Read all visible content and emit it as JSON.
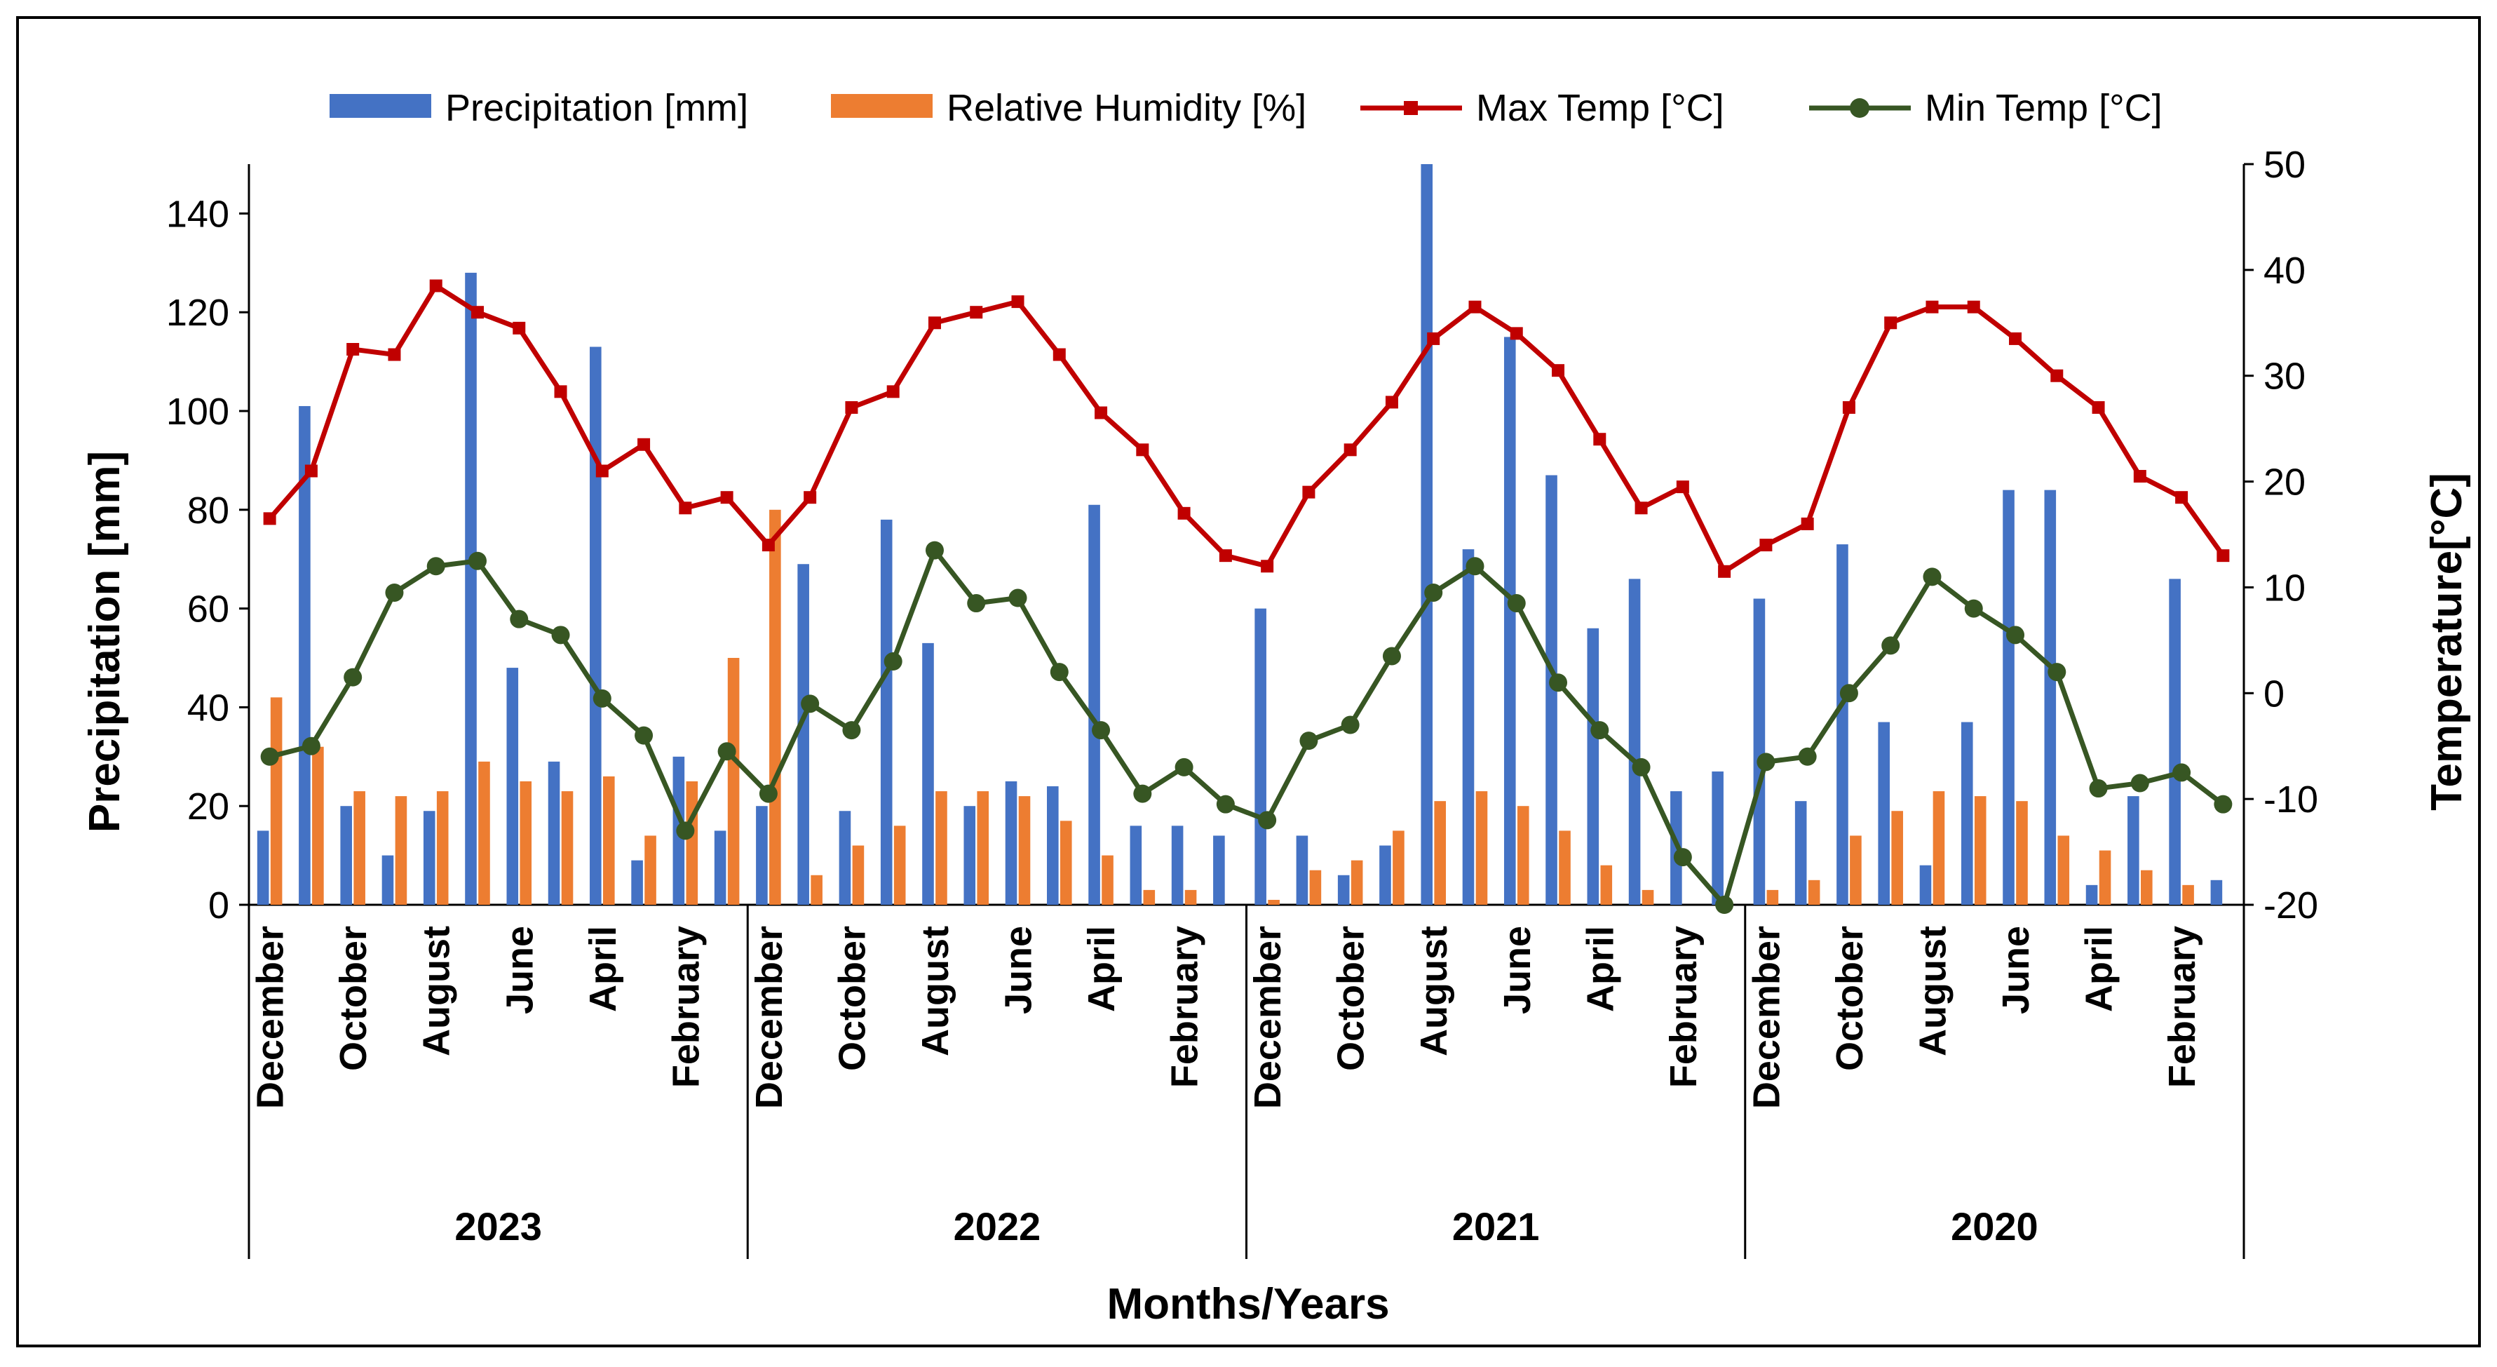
{
  "chart_data": {
    "type": "bar-line-combo",
    "title": "",
    "xlabel": "Months/Years",
    "ylabel_left": "Precipitation [mm]",
    "ylabel_right": "Temperature[°C]",
    "ylim_left": [
      0,
      150
    ],
    "ylim_right": [
      -20,
      50
    ],
    "yticks_left": [
      0,
      20,
      40,
      60,
      80,
      100,
      120,
      140
    ],
    "yticks_right": [
      -20,
      -10,
      0,
      10,
      20,
      30,
      40,
      50
    ],
    "legend_position": "top",
    "years": [
      "2023",
      "2022",
      "2021",
      "2020"
    ],
    "month_tick_labels": [
      "December",
      "October",
      "August",
      "June",
      "April",
      "February"
    ],
    "months_per_year": 12,
    "series": [
      {
        "name": "Precipitation [mm]",
        "type": "bar",
        "axis": "left",
        "color": "#4472C4",
        "values": [
          15,
          101,
          20,
          10,
          19,
          128,
          48,
          29,
          113,
          9,
          30,
          15,
          20,
          69,
          19,
          78,
          53,
          20,
          25,
          24,
          81,
          16,
          16,
          14,
          60,
          14,
          6,
          12,
          150,
          72,
          115,
          87,
          56,
          66,
          23,
          27,
          62,
          21,
          73,
          37,
          8,
          37,
          84,
          84,
          4,
          22,
          66,
          5
        ]
      },
      {
        "name": "Relative Humidity [%]",
        "type": "bar",
        "axis": "left",
        "color": "#ED7D31",
        "values": [
          42,
          32,
          23,
          22,
          23,
          29,
          25,
          23,
          26,
          14,
          25,
          50,
          80,
          6,
          12,
          16,
          23,
          23,
          22,
          17,
          10,
          3,
          3,
          0,
          1,
          7,
          9,
          15,
          21,
          23,
          20,
          15,
          8,
          3,
          0,
          0,
          3,
          5,
          14,
          19,
          23,
          22,
          21,
          14,
          11,
          7,
          4,
          0
        ]
      },
      {
        "name": "Max Temp [°C]",
        "type": "line",
        "axis": "right",
        "color": "#C00000",
        "marker": "square",
        "values": [
          16.5,
          21,
          32.5,
          32,
          38.5,
          36,
          34.5,
          28.5,
          21,
          23.5,
          17.5,
          18.5,
          14,
          18.5,
          27,
          28.5,
          35,
          36,
          37,
          32,
          26.5,
          23,
          17,
          13,
          12,
          19,
          23,
          27.5,
          33.5,
          36.5,
          34,
          30.5,
          24,
          17.5,
          19.5,
          11.5,
          14,
          16,
          27,
          35,
          36.5,
          36.5,
          33.5,
          30,
          27,
          20.5,
          18.5,
          13
        ]
      },
      {
        "name": "Min Temp [°C]",
        "type": "line",
        "axis": "right",
        "color": "#375623",
        "marker": "circle",
        "values": [
          -6,
          -5,
          1.5,
          9.5,
          12,
          12.5,
          7,
          5.5,
          -0.5,
          -4,
          -13,
          -5.5,
          -9.5,
          -1,
          -3.5,
          3,
          13.5,
          8.5,
          9,
          2,
          -3.5,
          -9.5,
          -7,
          -10.5,
          -12,
          -4.5,
          -3,
          3.5,
          9.5,
          12,
          8.5,
          1,
          -3.5,
          -7,
          -15.5,
          -20,
          -6.5,
          -6,
          0,
          4.5,
          11,
          8,
          5.5,
          2,
          -9,
          -8.5,
          -7.5,
          -10.5
        ]
      }
    ]
  }
}
